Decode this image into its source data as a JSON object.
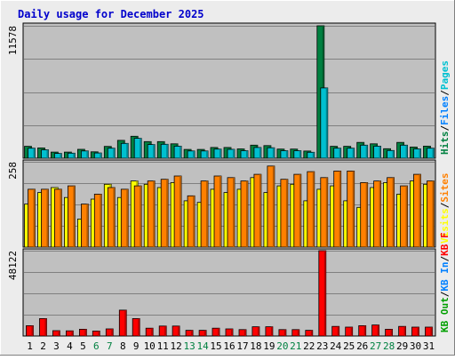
{
  "title": "Daily usage for December 2025",
  "colors": {
    "outer_bg": "#ececec",
    "plot_bg": "#c0c0c0",
    "grid": "#808080",
    "title": "#0000cc",
    "hits": "#008040",
    "files": "#0080ff",
    "pages": "#00c0d0",
    "visits": "#ffff00",
    "sites": "#ff8000",
    "kbf": "#ff0000",
    "kbin": "#0080ff",
    "kbout": "#00a000",
    "weekend": "#008040",
    "weekday": "#000000"
  },
  "chart_data": {
    "type": "bar",
    "categories": [
      "1",
      "2",
      "3",
      "4",
      "5",
      "6",
      "7",
      "8",
      "9",
      "10",
      "11",
      "12",
      "13",
      "14",
      "15",
      "16",
      "17",
      "18",
      "19",
      "20",
      "21",
      "22",
      "23",
      "24",
      "25",
      "26",
      "27",
      "28",
      "29",
      "30",
      "31"
    ],
    "weekend_days": [
      "6",
      "7",
      "13",
      "14",
      "20",
      "21",
      "27",
      "28"
    ],
    "panels": [
      {
        "id": "top",
        "ymax": 11578,
        "ymax_label": "11578",
        "legend": [
          {
            "text": "Hits",
            "color": "#008040"
          },
          {
            "text": "/",
            "color": "#000000"
          },
          {
            "text": "Files",
            "color": "#0080ff"
          },
          {
            "text": "/",
            "color": "#000000"
          },
          {
            "text": "Pages",
            "color": "#00c0d0"
          }
        ],
        "series": [
          {
            "name": "Hits",
            "color": "#008040",
            "values": [
              1040,
              900,
              540,
              540,
              780,
              560,
              1030,
              1560,
              1920,
              1450,
              1450,
              1260,
              770,
              770,
              940,
              940,
              820,
              1140,
              1100,
              800,
              800,
              630,
              11578,
              1040,
              1040,
              1380,
              1260,
              830,
              1380,
              980,
              1060
            ]
          },
          {
            "name": "Pages",
            "color": "#00c0d0",
            "values": [
              880,
              740,
              420,
              440,
              640,
              460,
              880,
              1300,
              1740,
              1200,
              1220,
              1060,
              640,
              640,
              800,
              780,
              660,
              940,
              920,
              660,
              660,
              520,
              6150,
              880,
              880,
              1140,
              1060,
              680,
              1140,
              820,
              880
            ]
          }
        ]
      },
      {
        "id": "middle",
        "ymax": 258,
        "ymax_label": "258",
        "legend": [
          {
            "text": "Visits",
            "color": "#ffff00"
          },
          {
            "text": "/",
            "color": "#000000"
          },
          {
            "text": "Sites",
            "color": "#ff8000"
          }
        ],
        "series": [
          {
            "name": "Visits",
            "color": "#ffff00",
            "values": [
              130,
              165,
              180,
              150,
              85,
              145,
              190,
              150,
              200,
              190,
              180,
              195,
              140,
              135,
              175,
              165,
              175,
              210,
              165,
              185,
              190,
              140,
              175,
              185,
              140,
              120,
              180,
              195,
              160,
              200,
              190
            ]
          },
          {
            "name": "Sites",
            "color": "#ff8000",
            "values": [
              175,
              175,
              175,
              185,
              130,
              160,
              180,
              175,
              185,
              200,
              205,
              215,
              155,
              200,
              215,
              210,
              200,
              220,
              245,
              205,
              220,
              228,
              210,
              230,
              230,
              195,
              200,
              210,
              185,
              220,
              200
            ]
          }
        ]
      },
      {
        "id": "bottom",
        "ymax": 48122,
        "ymax_label": "48122",
        "legend": [
          {
            "text": "KB Out",
            "color": "#00a000"
          },
          {
            "text": "/",
            "color": "#000000"
          },
          {
            "text": "KB In",
            "color": "#0080ff"
          },
          {
            "text": "/",
            "color": "#000000"
          },
          {
            "text": "KB F",
            "color": "#ff0000"
          }
        ],
        "series": [
          {
            "name": "KB F",
            "color": "#ff0000",
            "values": [
              5800,
              9800,
              3000,
              2900,
              3800,
              2800,
              4000,
              14600,
              9800,
              4400,
              5600,
              5600,
              3200,
              3200,
              4400,
              4000,
              3600,
              5200,
              5200,
              3600,
              3600,
              3200,
              48122,
              5400,
              5000,
              5800,
              6200,
              3800,
              5400,
              5000,
              5000
            ]
          }
        ]
      }
    ]
  }
}
